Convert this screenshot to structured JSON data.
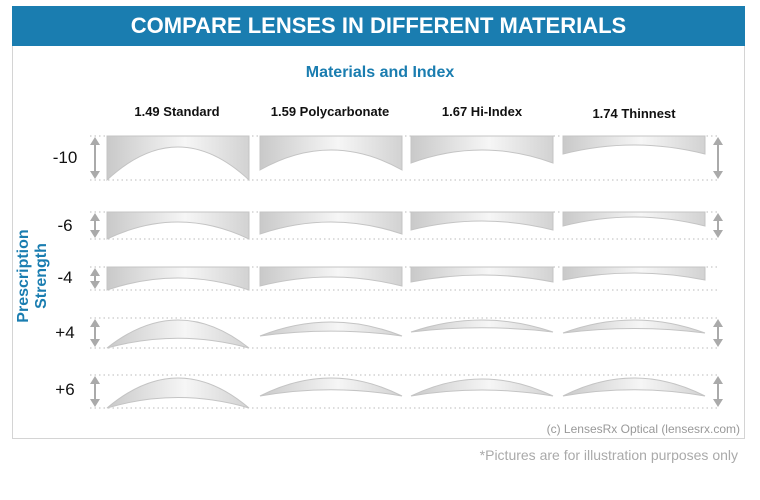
{
  "header": {
    "title": "COMPARE LENSES IN DIFFERENT MATERIALS"
  },
  "subtitle": "Materials and Index",
  "y_axis_label": "Prescription Strength",
  "columns": [
    "1.49 Standard",
    "1.59 Polycarbonate",
    "1.67 Hi-Index",
    "1.74 Thinnest"
  ],
  "rows": [
    "-10",
    "-6",
    "-4",
    "+4",
    "+6"
  ],
  "copyright": "(c) LensesRx Optical (lensesrx.com)",
  "footnote": "*Pictures are for illustration purposes only",
  "colors": {
    "brand": "#1a7db0",
    "lens_edge": "#c4c4c4",
    "lens_light": "#f6f6f6",
    "lens_dark": "#cfcfcf"
  }
}
